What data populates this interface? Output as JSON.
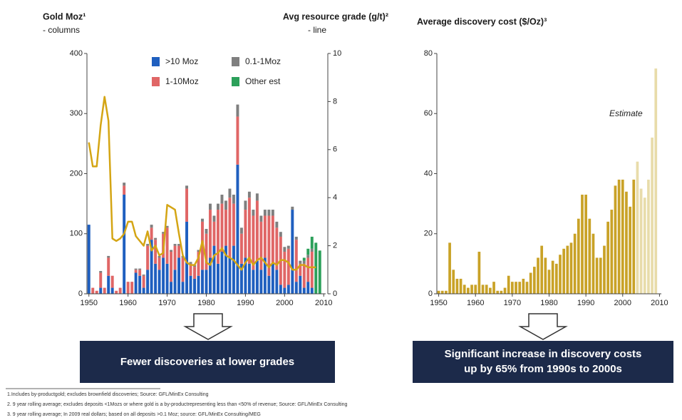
{
  "chart_data": [
    {
      "type": "bar",
      "stacked": true,
      "ylabel": "Gold Moz¹",
      "ylabel_note": "- columns",
      "y2label": "Avg resource grade (g/t)²",
      "y2label_note": "- line",
      "x": [
        1950,
        1951,
        1952,
        1953,
        1954,
        1955,
        1956,
        1957,
        1958,
        1959,
        1960,
        1961,
        1962,
        1963,
        1964,
        1965,
        1966,
        1967,
        1968,
        1969,
        1970,
        1971,
        1972,
        1973,
        1974,
        1975,
        1976,
        1977,
        1978,
        1979,
        1980,
        1981,
        1982,
        1983,
        1984,
        1985,
        1986,
        1987,
        1988,
        1989,
        1990,
        1991,
        1992,
        1993,
        1994,
        1995,
        1996,
        1997,
        1998,
        1999,
        2000,
        2001,
        2002,
        2003,
        2004,
        2005,
        2006,
        2007,
        2008,
        2009
      ],
      "xlim": [
        1949.5,
        2010.5
      ],
      "xticks": [
        1950,
        1960,
        1970,
        1980,
        1990,
        2000,
        2010
      ],
      "ylim": [
        0,
        400
      ],
      "yticks": [
        0,
        100,
        200,
        300,
        400
      ],
      "y2lim": [
        0,
        10
      ],
      "y2ticks": [
        0,
        2,
        4,
        6,
        8,
        10
      ],
      "series": [
        {
          "name": ">10 Moz",
          "color": "#1f5fbf",
          "values": [
            115,
            0,
            0,
            10,
            0,
            30,
            10,
            0,
            0,
            165,
            0,
            0,
            35,
            30,
            10,
            40,
            90,
            50,
            40,
            60,
            50,
            20,
            40,
            60,
            20,
            120,
            30,
            25,
            30,
            40,
            40,
            60,
            80,
            50,
            70,
            80,
            60,
            80,
            215,
            50,
            60,
            50,
            40,
            55,
            40,
            60,
            30,
            50,
            40,
            15,
            10,
            15,
            140,
            20,
            30,
            10,
            20,
            10,
            0,
            0
          ]
        },
        {
          "name": "1-10Moz",
          "color": "#e06666",
          "values": [
            0,
            10,
            5,
            25,
            10,
            30,
            20,
            5,
            10,
            15,
            20,
            20,
            5,
            10,
            20,
            40,
            20,
            40,
            20,
            40,
            60,
            50,
            40,
            20,
            40,
            55,
            20,
            20,
            40,
            80,
            60,
            80,
            40,
            90,
            80,
            60,
            100,
            70,
            80,
            50,
            80,
            110,
            90,
            100,
            80,
            70,
            100,
            80,
            70,
            80,
            60,
            60,
            0,
            70,
            20,
            40,
            40,
            60,
            0,
            0
          ]
        },
        {
          "name": "0.1-1Moz",
          "color": "#7f7f7f",
          "values": [
            0,
            0,
            0,
            3,
            0,
            3,
            0,
            0,
            0,
            5,
            0,
            0,
            2,
            2,
            2,
            3,
            5,
            3,
            3,
            3,
            3,
            3,
            3,
            3,
            3,
            5,
            3,
            3,
            3,
            5,
            8,
            10,
            10,
            10,
            15,
            15,
            15,
            15,
            20,
            10,
            15,
            10,
            10,
            12,
            10,
            10,
            10,
            10,
            10,
            8,
            8,
            5,
            5,
            5,
            5,
            5,
            5,
            5,
            0,
            0
          ]
        },
        {
          "name": "Other est",
          "color": "#2ca05a",
          "values": [
            0,
            0,
            0,
            0,
            0,
            0,
            0,
            0,
            0,
            0,
            0,
            0,
            0,
            0,
            0,
            0,
            0,
            0,
            0,
            0,
            0,
            0,
            0,
            0,
            0,
            0,
            0,
            0,
            0,
            0,
            0,
            0,
            0,
            0,
            0,
            0,
            0,
            0,
            0,
            0,
            0,
            0,
            0,
            0,
            0,
            0,
            0,
            0,
            0,
            0,
            0,
            0,
            0,
            0,
            0,
            5,
            10,
            20,
            85,
            72
          ]
        },
        {
          "type": "line",
          "axis": "y2",
          "color": "#d4a514",
          "values": [
            6.3,
            5.3,
            5.3,
            7.0,
            8.2,
            7.2,
            2.3,
            2.2,
            2.3,
            2.5,
            3.0,
            3.0,
            2.4,
            2.2,
            2.0,
            2.6,
            1.8,
            2.0,
            1.6,
            1.7,
            3.7,
            3.6,
            3.5,
            2.5,
            1.6,
            1.3,
            1.2,
            1.2,
            1.5,
            2.2,
            1.3,
            1.2,
            1.6,
            1.7,
            1.9,
            1.6,
            1.5,
            1.4,
            1.2,
            1.0,
            1.3,
            1.5,
            1.2,
            1.4,
            1.5,
            1.3,
            1.1,
            1.3,
            1.2,
            1.4,
            1.4,
            1.3,
            1.0,
            1.0,
            1.2,
            1.2,
            1.1,
            1.1,
            1.1,
            null
          ]
        }
      ]
    },
    {
      "type": "bar",
      "title": "Average discovery cost ($/Oz)³",
      "annotation": "Estimate",
      "x": [
        1950,
        1951,
        1952,
        1953,
        1954,
        1955,
        1956,
        1957,
        1958,
        1959,
        1960,
        1961,
        1962,
        1963,
        1964,
        1965,
        1966,
        1967,
        1968,
        1969,
        1970,
        1971,
        1972,
        1973,
        1974,
        1975,
        1976,
        1977,
        1978,
        1979,
        1980,
        1981,
        1982,
        1983,
        1984,
        1985,
        1986,
        1987,
        1988,
        1989,
        1990,
        1991,
        1992,
        1993,
        1994,
        1995,
        1996,
        1997,
        1998,
        1999,
        2000,
        2001,
        2002,
        2003,
        2004,
        2005,
        2006,
        2007,
        2008,
        2009
      ],
      "xlim": [
        1949.5,
        2010.5
      ],
      "xticks": [
        1950,
        1960,
        1970,
        1980,
        1990,
        2000,
        2010
      ],
      "ylim": [
        0,
        80
      ],
      "yticks": [
        0,
        20,
        40,
        60,
        80
      ],
      "values": [
        1,
        1,
        1,
        17,
        8,
        5,
        5,
        3,
        2,
        3,
        3,
        14,
        3,
        3,
        2,
        4,
        1,
        1,
        2,
        6,
        4,
        4,
        4,
        5,
        4,
        7,
        9,
        12,
        16,
        12,
        8,
        11,
        10,
        13,
        15,
        16,
        17,
        20,
        25,
        33,
        33,
        25,
        20,
        12,
        12,
        16,
        24,
        28,
        36,
        38,
        38,
        34,
        29,
        38,
        44,
        35,
        32,
        38,
        52,
        75
      ],
      "colors": [
        "#c9a227",
        "#c9a227",
        "#c9a227",
        "#c9a227",
        "#c9a227",
        "#c9a227",
        "#c9a227",
        "#c9a227",
        "#c9a227",
        "#c9a227",
        "#c9a227",
        "#c9a227",
        "#c9a227",
        "#c9a227",
        "#c9a227",
        "#c9a227",
        "#c9a227",
        "#c9a227",
        "#c9a227",
        "#c9a227",
        "#c9a227",
        "#c9a227",
        "#c9a227",
        "#c9a227",
        "#c9a227",
        "#c9a227",
        "#c9a227",
        "#c9a227",
        "#c9a227",
        "#c9a227",
        "#c9a227",
        "#c9a227",
        "#c9a227",
        "#c9a227",
        "#c9a227",
        "#c9a227",
        "#c9a227",
        "#c9a227",
        "#c9a227",
        "#c9a227",
        "#c9a227",
        "#c9a227",
        "#c9a227",
        "#c9a227",
        "#c9a227",
        "#c9a227",
        "#c9a227",
        "#c9a227",
        "#c9a227",
        "#c9a227",
        "#c9a227",
        "#c9a227",
        "#c9a227",
        "#c9a227",
        "#e8dcaa",
        "#e8dcaa",
        "#e8dcaa",
        "#e8dcaa",
        "#e8dcaa",
        "#e8dcaa"
      ]
    }
  ],
  "callouts": [
    "Fewer discoveries at lower grades",
    [
      "Significant increase in discovery costs",
      "up by 65% from 1990s to 2000s"
    ]
  ],
  "footnotes": [
    "1.Includes by-productgold; excludes brownfield discoveries; Source: GFL/MinEx Consulting",
    "2. 9 year rolling average; excludes deposits <1Mozs or where gold is a by-productrepresenting less than <50% of revenue; Source: GFL/MinEx Consulting",
    "3. 9 year rolling average; In 2009 real dollars; based on all deposits >0.1 Moz; source: GFL/MinEx Consulting/MEG"
  ]
}
